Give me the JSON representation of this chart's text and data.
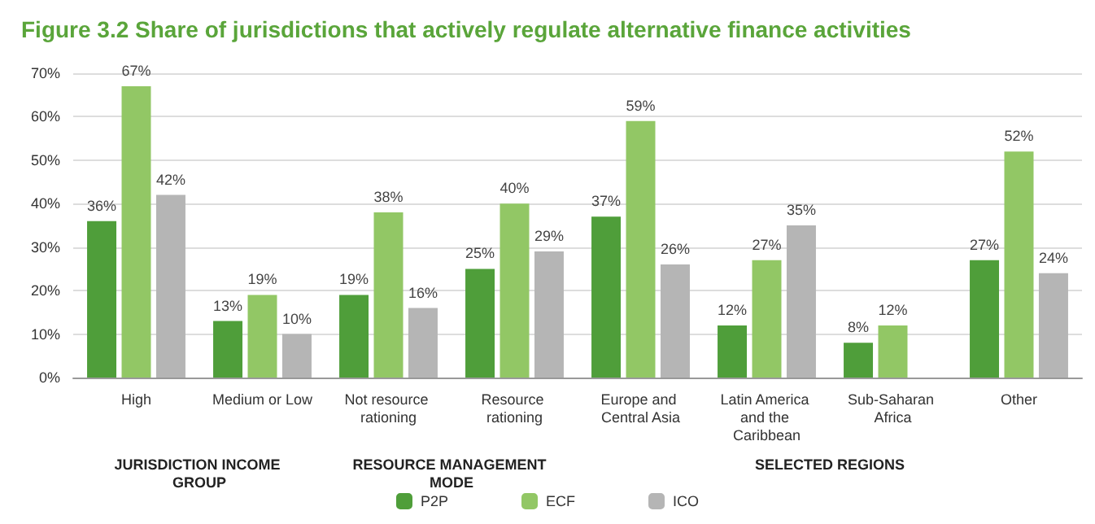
{
  "chart_data": {
    "type": "bar",
    "title": "Figure 3.2 Share of jurisdictions that actively regulate alternative finance activities",
    "categories": [
      "High",
      "Medium or Low",
      "Not resource rationing",
      "Resource rationing",
      "Europe and Central Asia",
      "Latin America and the Caribbean",
      "Sub-Saharan Africa",
      "Other"
    ],
    "series": [
      {
        "name": "P2P",
        "color": "#4f9e3a",
        "values": [
          36,
          13,
          19,
          25,
          37,
          12,
          8,
          27
        ],
        "value_labels": [
          "36%",
          "13%",
          "19%",
          "25%",
          "37%",
          "12%",
          "8%",
          "27%"
        ]
      },
      {
        "name": "ECF",
        "color": "#92c765",
        "values": [
          67,
          19,
          38,
          40,
          59,
          27,
          12,
          52
        ],
        "value_labels": [
          "67%",
          "19%",
          "38%",
          "40%",
          "59%",
          "27%",
          "12%",
          "52%"
        ]
      },
      {
        "name": "ICO",
        "color": "#b5b5b5",
        "values": [
          42,
          10,
          16,
          29,
          26,
          35,
          null,
          24
        ],
        "value_labels": [
          "42%",
          "10%",
          "16%",
          "29%",
          "26%",
          "35%",
          null,
          "24%"
        ]
      }
    ],
    "annotations": [
      "JURISDICTION INCOME GROUP",
      "RESOURCE MANAGEMENT MODE",
      "SELECTED REGIONS"
    ],
    "ylim": [
      0,
      70
    ],
    "yticks": [
      {
        "value": 0,
        "label": "0%"
      },
      {
        "value": 10,
        "label": "10%"
      },
      {
        "value": 20,
        "label": "20%"
      },
      {
        "value": 30,
        "label": "30%"
      },
      {
        "value": 40,
        "label": "40%"
      },
      {
        "value": 50,
        "label": "50%"
      },
      {
        "value": 60,
        "label": "60%"
      },
      {
        "value": 70,
        "label": "70%"
      }
    ],
    "grid": "y",
    "legend": "bottom"
  }
}
